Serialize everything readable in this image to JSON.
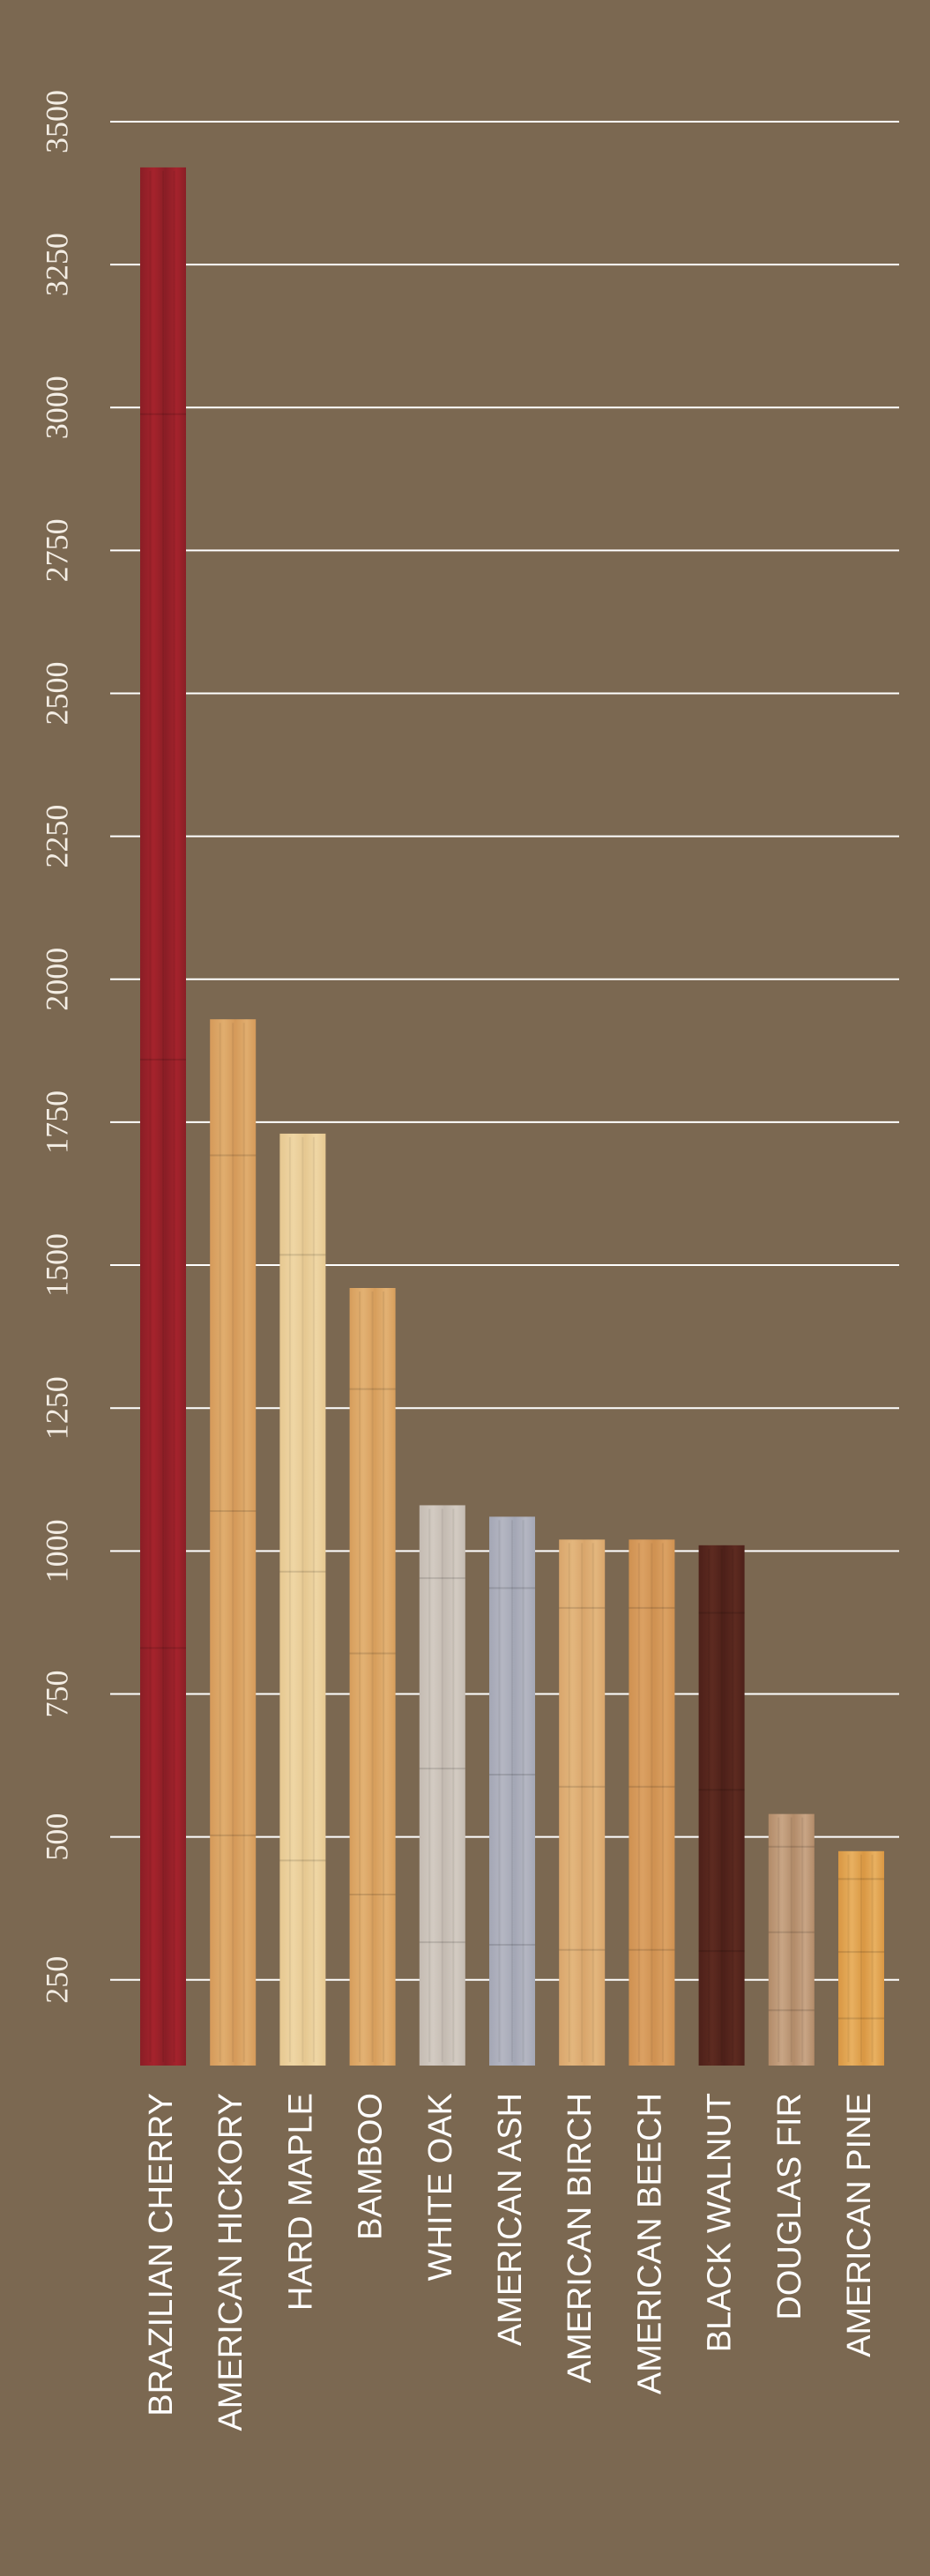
{
  "chart_data": {
    "type": "bar",
    "title": "",
    "xlabel": "",
    "ylabel": "",
    "categories": [
      "BRAZILIAN CHERRY",
      "AMERICAN HICKORY",
      "HARD MAPLE",
      "BAMBOO",
      "WHITE OAK",
      "AMERICAN ASH",
      "AMERICAN BIRCH",
      "AMERICAN BEECH",
      "BLACK WALNUT",
      "DOUGLAS FIR",
      "AMERICAN PINE"
    ],
    "values": [
      3420,
      1930,
      1730,
      1460,
      1080,
      1060,
      1020,
      1020,
      1010,
      540,
      475
    ],
    "ylim": [
      100,
      3500
    ],
    "yticks": [
      {
        "value": 250,
        "label": "250"
      },
      {
        "value": 500,
        "label": "500"
      },
      {
        "value": 750,
        "label": "750"
      },
      {
        "value": 1000,
        "label": "1000"
      },
      {
        "value": 1250,
        "label": "1250"
      },
      {
        "value": 1500,
        "label": "1500"
      },
      {
        "value": 1750,
        "label": "1750"
      },
      {
        "value": 2000,
        "label": "2000"
      },
      {
        "value": 2250,
        "label": "2250"
      },
      {
        "value": 2500,
        "label": "2500"
      },
      {
        "value": 2750,
        "label": "2750"
      },
      {
        "value": 3000,
        "label": "3000"
      },
      {
        "value": 3250,
        "label": "3250"
      },
      {
        "value": 3500,
        "label": "3500"
      }
    ],
    "grid": true,
    "legend": "none",
    "bar_colors": [
      [
        "#8a1e26",
        "#a5232c"
      ],
      [
        "#d59a5a",
        "#e0ad6e"
      ],
      [
        "#e6c891",
        "#efd6a4"
      ],
      [
        "#d79e5c",
        "#e2b173"
      ],
      [
        "#c4bbb2",
        "#d3cbc2"
      ],
      [
        "#a4a7b5",
        "#b4b6c2"
      ],
      [
        "#d9a66c",
        "#e3b67d"
      ],
      [
        "#cf9151",
        "#dba163"
      ],
      [
        "#4d2019",
        "#5d2a20"
      ],
      [
        "#b28b69",
        "#c8a585"
      ],
      [
        "#d99743",
        "#e8b060"
      ]
    ],
    "background_color": "#7b6851",
    "grid_color": "#ffffff"
  }
}
